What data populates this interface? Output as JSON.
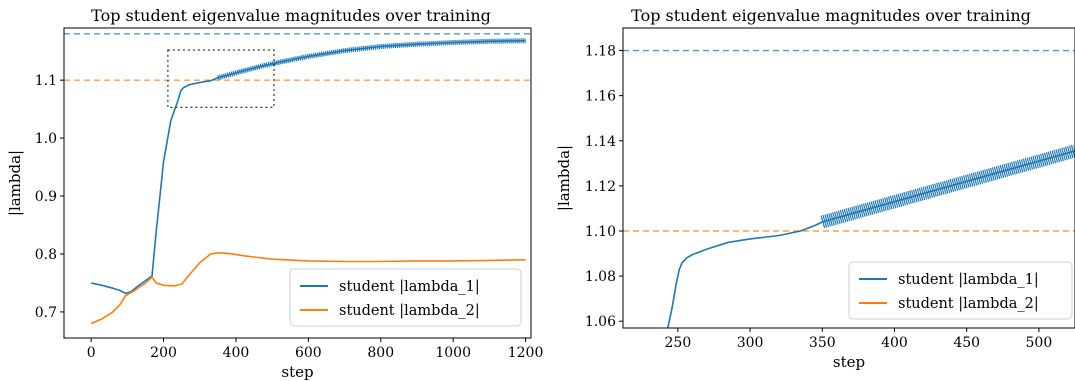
{
  "chart_data": [
    {
      "type": "line",
      "title": "Top student eigenvalue magnitudes over training",
      "xlabel": "step",
      "ylabel": "|lambda|",
      "xlim": [
        -75,
        1215
      ],
      "ylim": [
        0.655,
        1.19
      ],
      "xticks": [
        "0",
        "200",
        "400",
        "600",
        "800",
        "1000",
        "1200"
      ],
      "xtick_values": [
        0,
        200,
        400,
        600,
        800,
        1000,
        1200
      ],
      "yticks": [
        "0.7",
        "0.8",
        "0.9",
        "1.0",
        "1.1"
      ],
      "ytick_values": [
        0.7,
        0.8,
        0.9,
        1.0,
        1.1
      ],
      "legend_position": "lower right",
      "series": [
        {
          "name": "student |lambda_1|",
          "color": "#1f77b4",
          "x": [
            0,
            30,
            60,
            80,
            95,
            110,
            130,
            150,
            168,
            180,
            200,
            220,
            240,
            248,
            255,
            270,
            300,
            330,
            350,
            380,
            420,
            470,
            520,
            600,
            700,
            800,
            900,
            1000,
            1100,
            1200
          ],
          "y": [
            0.75,
            0.746,
            0.741,
            0.737,
            0.732,
            0.735,
            0.745,
            0.754,
            0.762,
            0.84,
            0.96,
            1.03,
            1.065,
            1.082,
            1.087,
            1.092,
            1.096,
            1.099,
            1.104,
            1.109,
            1.116,
            1.124,
            1.131,
            1.141,
            1.151,
            1.158,
            1.162,
            1.165,
            1.167,
            1.168
          ]
        },
        {
          "name": "student |lambda_2|",
          "color": "#ff7f0e",
          "x": [
            0,
            30,
            60,
            80,
            95,
            120,
            150,
            168,
            180,
            200,
            230,
            250,
            270,
            300,
            330,
            350,
            380,
            420,
            500,
            600,
            700,
            800,
            900,
            1000,
            1100,
            1200
          ],
          "y": [
            0.68,
            0.688,
            0.7,
            0.713,
            0.728,
            0.737,
            0.75,
            0.76,
            0.75,
            0.746,
            0.745,
            0.748,
            0.763,
            0.785,
            0.8,
            0.802,
            0.801,
            0.797,
            0.791,
            0.788,
            0.787,
            0.787,
            0.788,
            0.788,
            0.789,
            0.79
          ]
        }
      ],
      "reference_lines": [
        {
          "y": 1.18,
          "color": "#1f77b4",
          "style": "dashed"
        },
        {
          "y": 1.1,
          "color": "#ff7f0e",
          "style": "dashed"
        }
      ],
      "zoom_box": {
        "x": [
          212,
          505
        ],
        "y": [
          1.053,
          1.152
        ],
        "style": "dotted"
      }
    },
    {
      "type": "line",
      "title": "Top student eigenvalue magnitudes over training",
      "xlabel": "step",
      "ylabel": "|lambda|",
      "xlim": [
        212,
        525
      ],
      "ylim": [
        1.057,
        1.19
      ],
      "xticks": [
        "250",
        "300",
        "350",
        "400",
        "450",
        "500"
      ],
      "xtick_values": [
        250,
        300,
        350,
        400,
        450,
        500
      ],
      "yticks": [
        "1.06",
        "1.08",
        "1.10",
        "1.12",
        "1.14",
        "1.16",
        "1.18"
      ],
      "ytick_values": [
        1.06,
        1.08,
        1.1,
        1.12,
        1.14,
        1.16,
        1.18
      ],
      "legend_position": "lower right",
      "series": [
        {
          "name": "student |lambda_1|",
          "color": "#1f77b4",
          "x": [
            243,
            246,
            249,
            251,
            253,
            256,
            260,
            270,
            285,
            300,
            320,
            335,
            345,
            350,
            375,
            400,
            425,
            450,
            475,
            500,
            525
          ],
          "y": [
            1.057,
            1.066,
            1.077,
            1.083,
            1.086,
            1.088,
            1.0895,
            1.092,
            1.095,
            1.0965,
            1.098,
            1.1,
            1.1025,
            1.104,
            1.1085,
            1.113,
            1.1175,
            1.122,
            1.1265,
            1.131,
            1.1355
          ]
        },
        {
          "name": "student |lambda_2|",
          "color": "#ff7f0e",
          "x": [],
          "y": []
        }
      ],
      "reference_lines": [
        {
          "y": 1.18,
          "color": "#1f77b4",
          "style": "dashed"
        },
        {
          "y": 1.1,
          "color": "#ff7f0e",
          "style": "dashed"
        }
      ]
    }
  ]
}
